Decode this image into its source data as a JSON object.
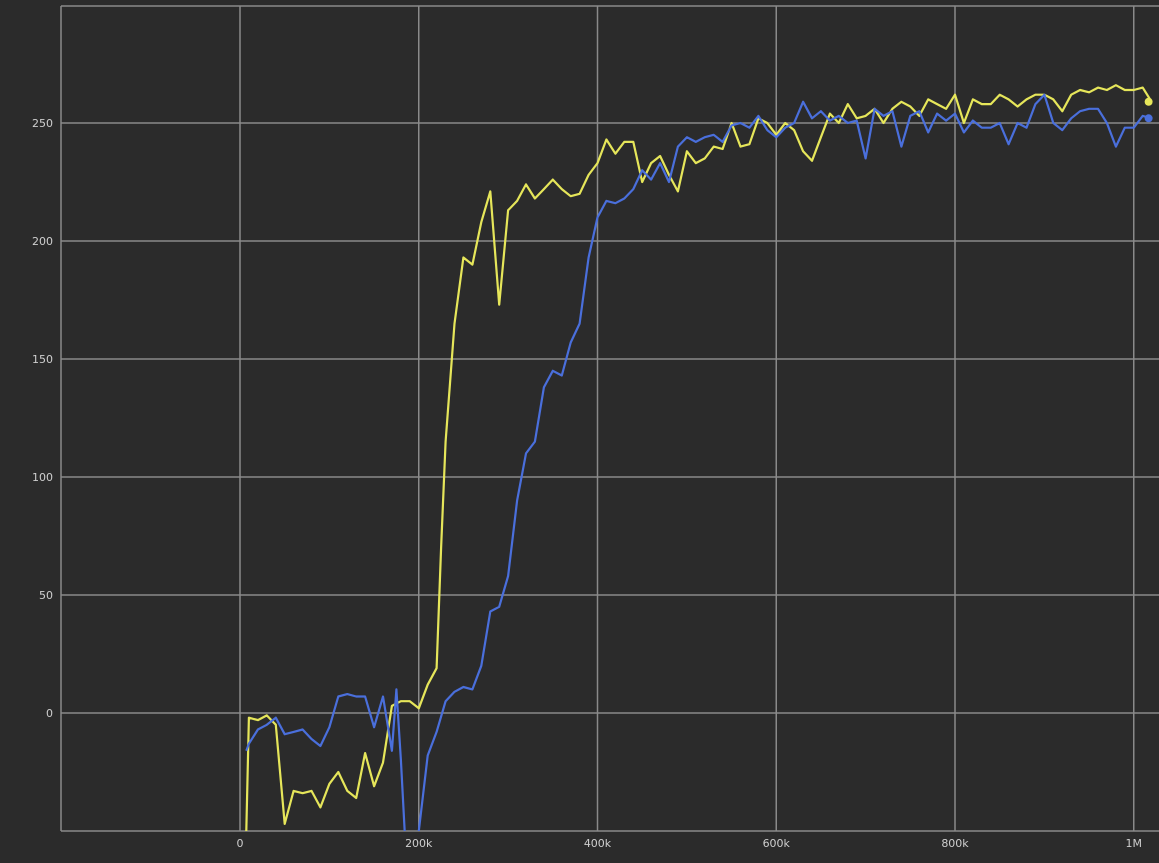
{
  "chart_data": {
    "type": "line",
    "title": "",
    "xlabel": "",
    "ylabel": "",
    "xlim": [
      -200000,
      1025000
    ],
    "ylim": [
      -50,
      300
    ],
    "grid": true,
    "x_ticks": [
      {
        "value": 0,
        "label": "0"
      },
      {
        "value": 200000,
        "label": "200k"
      },
      {
        "value": 400000,
        "label": "400k"
      },
      {
        "value": 600000,
        "label": "600k"
      },
      {
        "value": 800000,
        "label": "800k"
      },
      {
        "value": 1000000,
        "label": "1M"
      }
    ],
    "y_ticks": [
      {
        "value": 0,
        "label": "0"
      },
      {
        "value": 50,
        "label": "50"
      },
      {
        "value": 100,
        "label": "100"
      },
      {
        "value": 150,
        "label": "150"
      },
      {
        "value": 200,
        "label": "200"
      },
      {
        "value": 250,
        "label": "250"
      }
    ],
    "series": [
      {
        "color": "#e6e65a",
        "x": [
          7000,
          10000,
          20000,
          30000,
          40000,
          50000,
          60000,
          70000,
          80000,
          90000,
          100000,
          110000,
          120000,
          130000,
          140000,
          150000,
          160000,
          170000,
          180000,
          190000,
          200000,
          210000,
          220000,
          225000,
          230000,
          240000,
          250000,
          260000,
          270000,
          280000,
          290000,
          300000,
          310000,
          320000,
          330000,
          340000,
          350000,
          360000,
          370000,
          380000,
          390000,
          400000,
          410000,
          420000,
          430000,
          440000,
          450000,
          460000,
          470000,
          480000,
          490000,
          500000,
          510000,
          520000,
          530000,
          540000,
          550000,
          560000,
          570000,
          580000,
          590000,
          600000,
          610000,
          620000,
          630000,
          640000,
          650000,
          660000,
          670000,
          680000,
          690000,
          700000,
          710000,
          720000,
          730000,
          740000,
          750000,
          760000,
          770000,
          780000,
          790000,
          800000,
          810000,
          820000,
          830000,
          840000,
          850000,
          860000,
          870000,
          880000,
          890000,
          900000,
          910000,
          920000,
          930000,
          940000,
          950000,
          960000,
          970000,
          980000,
          990000,
          1000000,
          1010000,
          1020000
        ],
        "values": [
          -50,
          -2,
          -3,
          -1,
          -5,
          -47,
          -33,
          -34,
          -33,
          -40,
          -30,
          -25,
          -33,
          -36,
          -17,
          -31,
          -21,
          3,
          5,
          5,
          2,
          12,
          19,
          70,
          115,
          165,
          193,
          190,
          208,
          221,
          173,
          213,
          217,
          224,
          218,
          222,
          226,
          222,
          219,
          220,
          228,
          233,
          243,
          237,
          242,
          242,
          225,
          233,
          236,
          228,
          221,
          238,
          233,
          235,
          240,
          239,
          250,
          240,
          241,
          252,
          250,
          245,
          250,
          247,
          238,
          234,
          244,
          254,
          250,
          258,
          252,
          253,
          256,
          250,
          256,
          259,
          257,
          253,
          260,
          258,
          256,
          262,
          250,
          260,
          258,
          258,
          262,
          260,
          257,
          260,
          262,
          262,
          260,
          255,
          262,
          264,
          263,
          265,
          264,
          266,
          264,
          264,
          265,
          259
        ]
      },
      {
        "color": "#4a6fdc",
        "x": [
          7000,
          10000,
          20000,
          30000,
          40000,
          50000,
          60000,
          70000,
          80000,
          90000,
          100000,
          110000,
          120000,
          130000,
          140000,
          150000,
          160000,
          170000,
          175000,
          180000,
          185000,
          190000,
          195000,
          200000,
          210000,
          220000,
          230000,
          240000,
          250000,
          260000,
          270000,
          280000,
          290000,
          300000,
          310000,
          320000,
          330000,
          340000,
          350000,
          360000,
          370000,
          380000,
          390000,
          400000,
          410000,
          420000,
          430000,
          440000,
          450000,
          460000,
          470000,
          480000,
          490000,
          500000,
          510000,
          520000,
          530000,
          540000,
          550000,
          560000,
          570000,
          580000,
          590000,
          600000,
          610000,
          620000,
          630000,
          640000,
          650000,
          660000,
          670000,
          680000,
          690000,
          700000,
          710000,
          720000,
          730000,
          740000,
          750000,
          760000,
          770000,
          780000,
          790000,
          800000,
          810000,
          820000,
          830000,
          840000,
          850000,
          860000,
          870000,
          880000,
          890000,
          900000,
          910000,
          920000,
          930000,
          940000,
          950000,
          960000,
          970000,
          980000,
          990000,
          1000000,
          1010000,
          1020000
        ],
        "values": [
          -16,
          -13,
          -7,
          -5,
          -2,
          -9,
          -8,
          -7,
          -11,
          -14,
          -6,
          7,
          8,
          7,
          7,
          -6,
          7,
          -16,
          10,
          -20,
          -55,
          -60,
          -55,
          -50,
          -18,
          -8,
          5,
          9,
          11,
          10,
          20,
          43,
          45,
          58,
          90,
          110,
          115,
          138,
          145,
          143,
          157,
          165,
          193,
          210,
          217,
          216,
          218,
          222,
          230,
          226,
          233,
          225,
          240,
          244,
          242,
          244,
          245,
          242,
          249,
          250,
          248,
          253,
          247,
          244,
          248,
          250,
          259,
          252,
          255,
          251,
          253,
          250,
          251,
          235,
          256,
          253,
          255,
          240,
          253,
          255,
          246,
          254,
          251,
          254,
          246,
          251,
          248,
          248,
          250,
          241,
          250,
          248,
          258,
          262,
          250,
          247,
          252,
          255,
          256,
          256,
          250,
          240,
          248,
          248,
          253,
          252
        ]
      }
    ]
  }
}
